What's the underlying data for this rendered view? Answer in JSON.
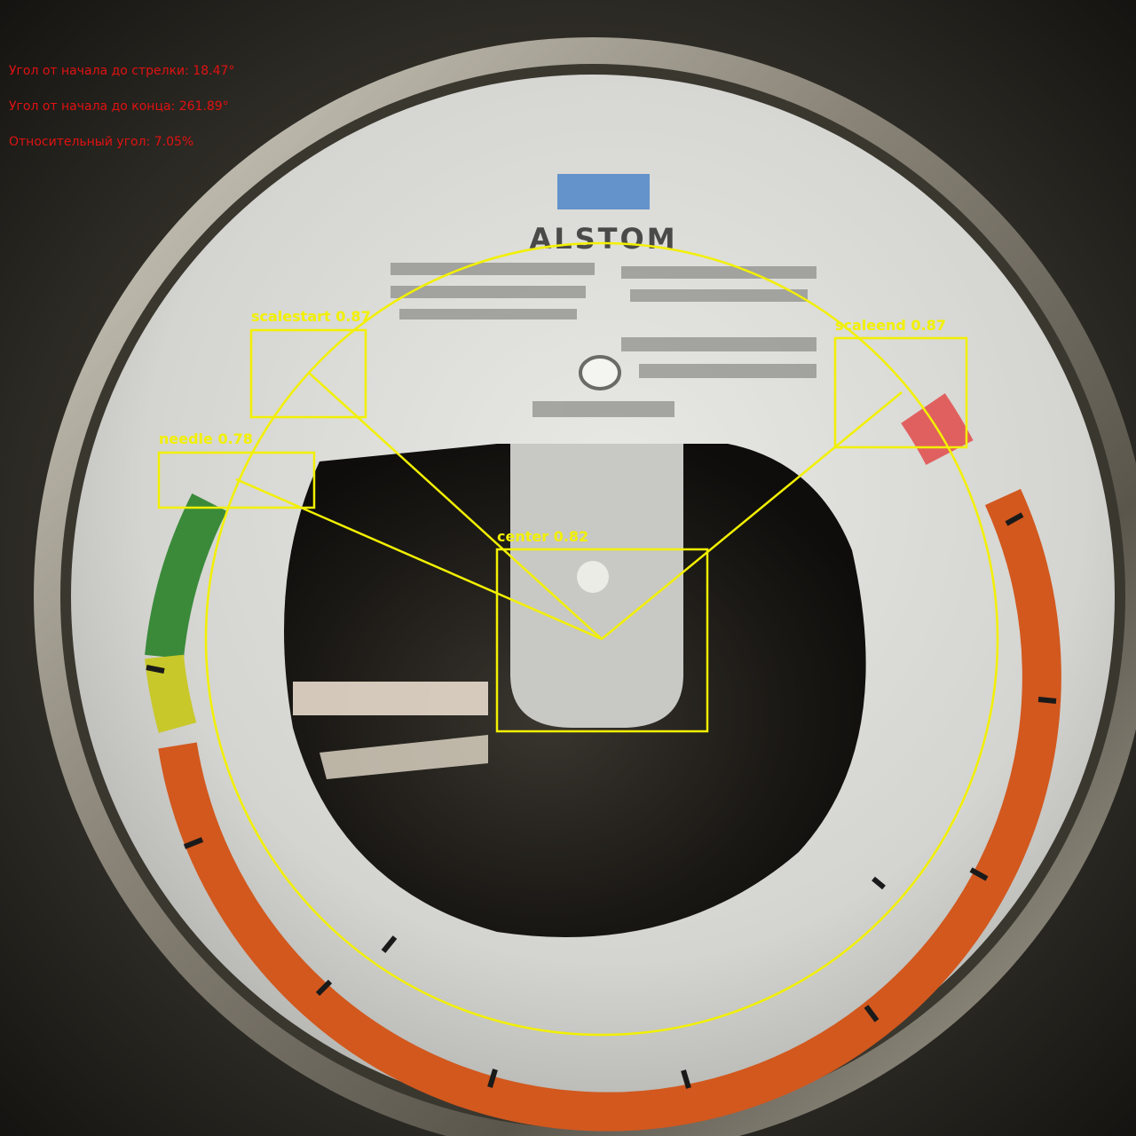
{
  "overlay": {
    "readouts": {
      "start_to_needle": "Угол от начала до стрелки: 18.47°",
      "start_to_end": "Угол от начала до конца: 261.89°",
      "relative": "Относительный угол: 7.05%"
    },
    "detections": {
      "scalestart": "scalestart 0.87",
      "scaleend": "scaleend 0.87",
      "needle": "needle 0.78",
      "center": "center 0.82"
    },
    "colors": {
      "readout_text": "#e01212",
      "annotation": "#f2f000"
    }
  },
  "gauge": {
    "brand": "ALSTOM"
  }
}
